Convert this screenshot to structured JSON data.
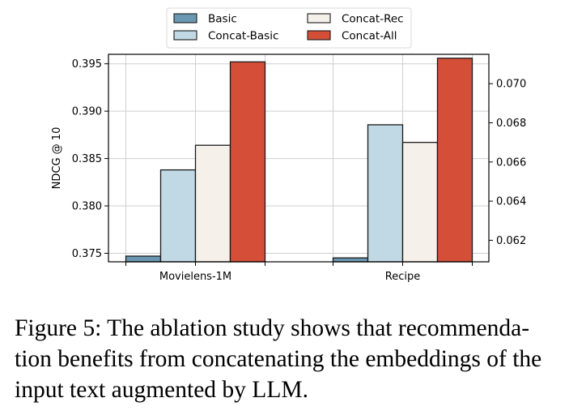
{
  "chart_data": {
    "type": "bar",
    "title": "",
    "xlabel": "",
    "ylabel": "NDCG @ 10",
    "categories": [
      "Movielens-1M",
      "Recipe"
    ],
    "category_axis": [
      "left",
      "right"
    ],
    "series": [
      {
        "name": "Basic",
        "color": "#6a98b2",
        "values": [
          0.3747,
          0.0611
        ]
      },
      {
        "name": "Concat-Basic",
        "color": "#c0d9e4",
        "values": [
          0.3838,
          0.0679
        ]
      },
      {
        "name": "Concat-Rec",
        "color": "#f5f0ea",
        "values": [
          0.3864,
          0.067
        ]
      },
      {
        "name": "Concat-All",
        "color": "#d54e38",
        "values": [
          0.3952,
          0.0713
        ]
      }
    ],
    "left_axis": {
      "ylim": [
        0.3741,
        0.396
      ],
      "ticks": [
        0.375,
        0.38,
        0.385,
        0.39,
        0.395
      ],
      "tick_labels": [
        "0.375",
        "0.380",
        "0.385",
        "0.390",
        "0.395"
      ]
    },
    "right_axis": {
      "ylim": [
        0.0609,
        0.0715
      ],
      "ticks": [
        0.062,
        0.064,
        0.066,
        0.068,
        0.07
      ],
      "tick_labels": [
        "0.062",
        "0.064",
        "0.066",
        "0.068",
        "0.070"
      ]
    },
    "grid": true,
    "legend": {
      "placement": "top-center",
      "columns": 2
    }
  },
  "caption": {
    "lines": [
      "Figure 5: The ablation study shows that recommenda-",
      "tion benefits from concatenating the embeddings of the",
      "input text augmented by LLM."
    ]
  }
}
